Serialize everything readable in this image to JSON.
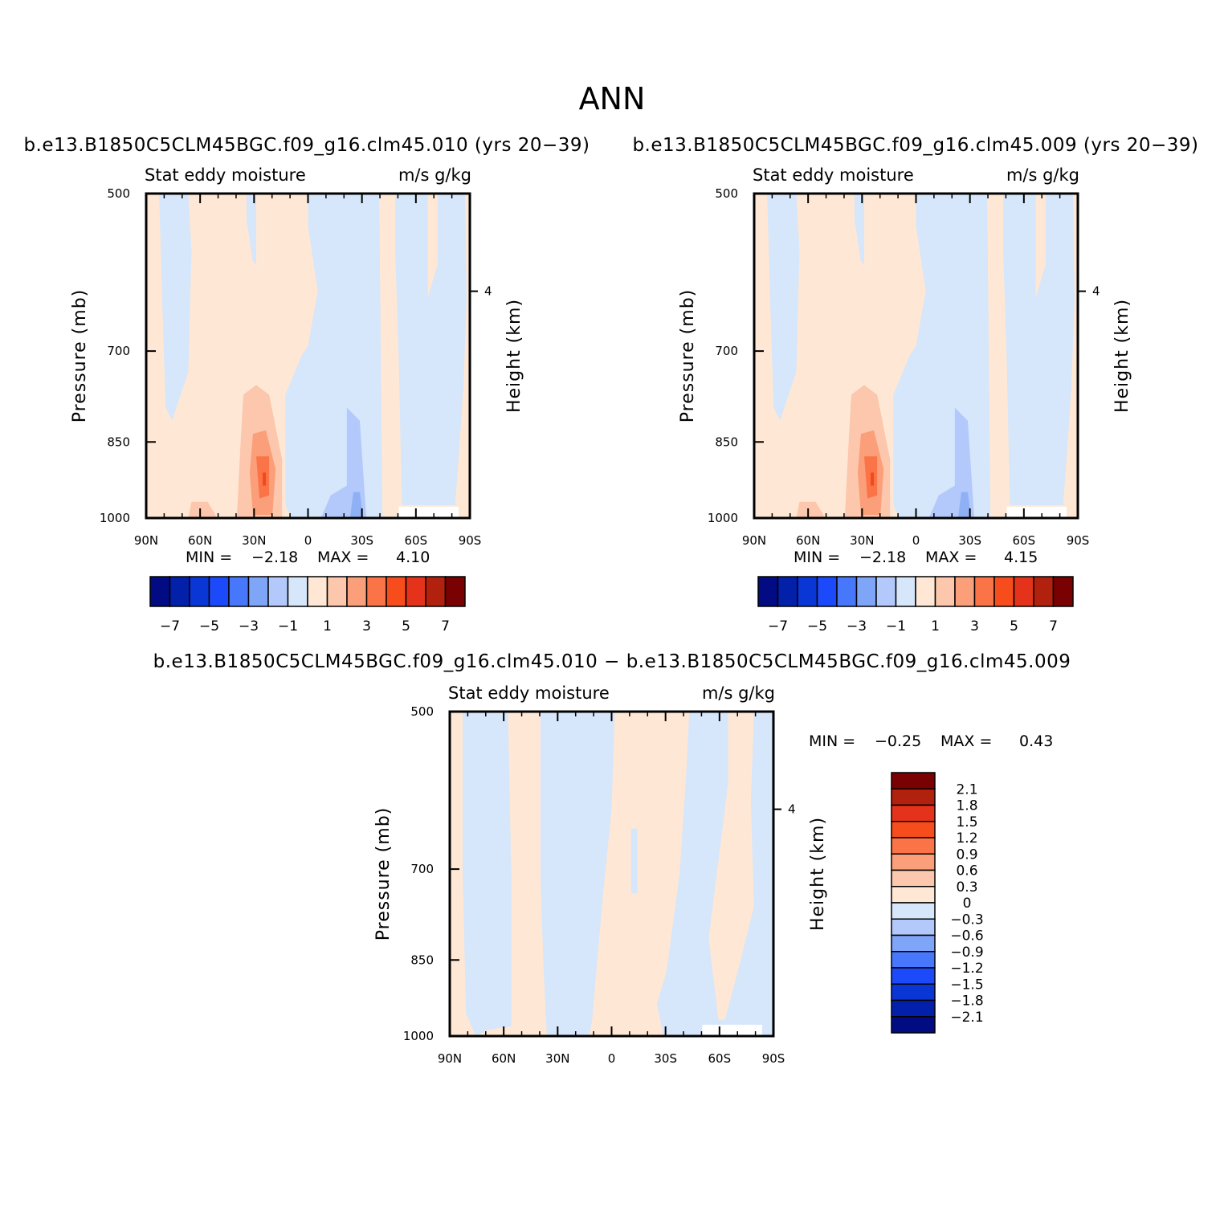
{
  "title": "ANN",
  "colors": {
    "neg3": "#b4c9fb",
    "neg2": "#d6e6fb",
    "pos1": "#fee8d5",
    "pos2": "#fcc7ac",
    "pos3": "#fb9f7a",
    "pos4": "#fb7447",
    "pos5": "#ef4a1c",
    "blue_streak": "#8fb0f4",
    "blank": "#ffffff"
  },
  "chart_data": [
    {
      "type": "heatmap",
      "title": "b.e13.B1850C5CLM45BGC.f09_g16.clm45.010 (yrs 20−39)",
      "left_string": "Stat eddy moisture",
      "right_string": "m/s  g/kg",
      "ylabel": "Pressure (mb)",
      "ylabel_right": "Height (km)",
      "x_ticks": [
        "90N",
        "60N",
        "30N",
        "0",
        "30S",
        "60S",
        "90S"
      ],
      "y_ticks": [
        "500",
        "700",
        "850",
        "1000"
      ],
      "y_right_ticks": [
        "4"
      ],
      "min_label": "MIN =",
      "min": "−2.18",
      "max_label": "MAX =",
      "max": "4.10",
      "colorbar_labels": [
        "−7",
        "−5",
        "−3",
        "−1",
        "1",
        "3",
        "5",
        "7"
      ]
    },
    {
      "type": "heatmap",
      "title": "b.e13.B1850C5CLM45BGC.f09_g16.clm45.009 (yrs 20−39)",
      "left_string": "Stat eddy moisture",
      "right_string": "m/s  g/kg",
      "ylabel": "Pressure (mb)",
      "ylabel_right": "Height (km)",
      "x_ticks": [
        "90N",
        "60N",
        "30N",
        "0",
        "30S",
        "60S",
        "90S"
      ],
      "y_ticks": [
        "500",
        "700",
        "850",
        "1000"
      ],
      "y_right_ticks": [
        "4"
      ],
      "min_label": "MIN =",
      "min": "−2.18",
      "max_label": "MAX =",
      "max": "4.15",
      "colorbar_labels": [
        "−7",
        "−5",
        "−3",
        "−1",
        "1",
        "3",
        "5",
        "7"
      ]
    },
    {
      "type": "heatmap",
      "title": "b.e13.B1850C5CLM45BGC.f09_g16.clm45.010 − b.e13.B1850C5CLM45BGC.f09_g16.clm45.009",
      "left_string": "Stat eddy moisture",
      "right_string": "m/s  g/kg",
      "ylabel": "Pressure (mb)",
      "ylabel_right": "Height (km)",
      "x_ticks": [
        "90N",
        "60N",
        "30N",
        "0",
        "30S",
        "60S",
        "90S"
      ],
      "y_ticks": [
        "500",
        "700",
        "850",
        "1000"
      ],
      "y_right_ticks": [
        "4"
      ],
      "min_label": "MIN =",
      "min": "−0.25",
      "max_label": "MAX =",
      "max": "0.43",
      "colorbar_labels": [
        "2.1",
        "1.8",
        "1.5",
        "1.2",
        "0.9",
        "0.6",
        "0.3",
        "0",
        "−0.3",
        "−0.6",
        "−0.9",
        "−1.2",
        "−1.5",
        "−1.8",
        "−2.1"
      ]
    }
  ],
  "colorbar_top": {
    "colors": [
      "#020c82",
      "#0320aa",
      "#0b36d6",
      "#1c4afb",
      "#4778fb",
      "#7ea5f7",
      "#b4c9fb",
      "#d6e6fb",
      "#fee8d5",
      "#fcc7ac",
      "#fb9f7a",
      "#fb7447",
      "#f74c1c",
      "#e4331a",
      "#b2210d",
      "#7a0101"
    ]
  },
  "colorbar_diff": {
    "colors": [
      "#7a0101",
      "#b2210d",
      "#e4331a",
      "#f74c1c",
      "#fb7447",
      "#fb9f7a",
      "#fcc7ac",
      "#fee8d5",
      "#d6e6fb",
      "#b4c9fb",
      "#7ea5f7",
      "#4778fb",
      "#1c4afb",
      "#0b36d6",
      "#0320aa",
      "#020c82"
    ]
  }
}
